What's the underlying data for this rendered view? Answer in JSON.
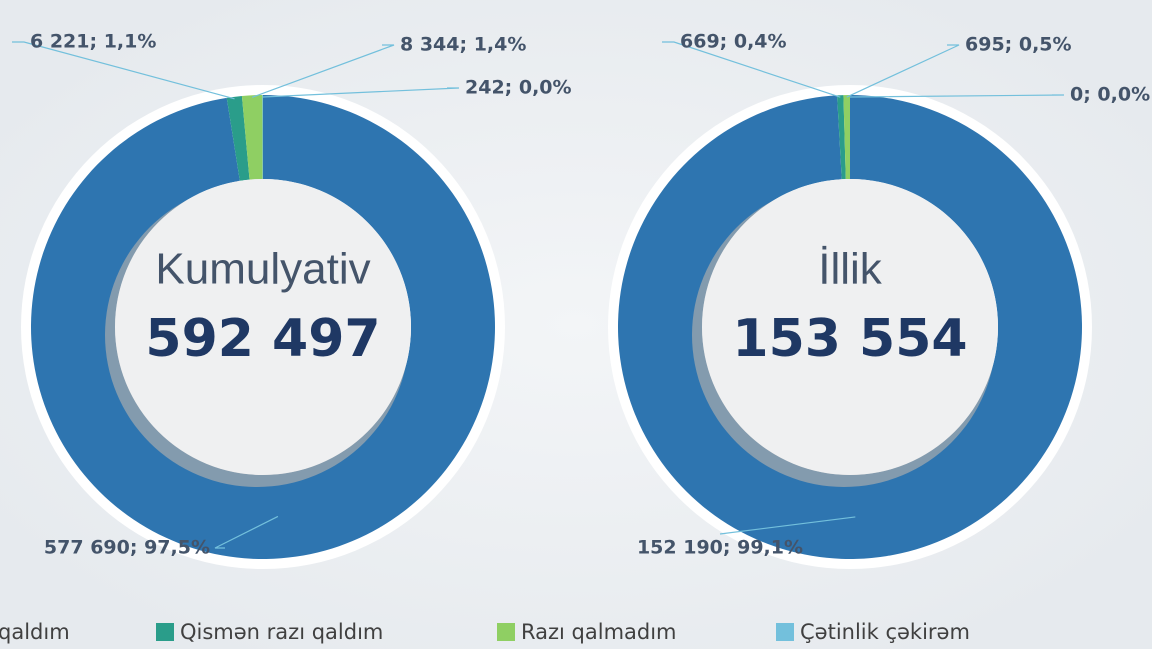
{
  "legend": [
    "qaldım",
    "Qismən razı qaldım",
    "Razı qalmadım",
    "Çətinlik çəkirəm"
  ],
  "colors": [
    "#2e75b0",
    "#2a9d8a",
    "#8fcf63",
    "#73c0dc"
  ],
  "chart_data": [
    {
      "type": "donut",
      "title": "Kumulyativ",
      "total": {
        "value": 592497,
        "label": "592 497"
      },
      "values": [
        577690,
        6221,
        8344,
        242
      ],
      "value_labels": [
        "577 690; 97,5%",
        "6 221; 1,1%",
        "8 344; 1,4%",
        "242; 0,0%"
      ]
    },
    {
      "type": "donut",
      "title": "İllik",
      "total": {
        "value": 153554,
        "label": "153 554"
      },
      "values": [
        152190,
        669,
        695,
        0
      ],
      "value_labels": [
        "152 190; 99,1%",
        "669; 0,4%",
        "695; 0,5%",
        "0; 0,0%"
      ]
    }
  ]
}
